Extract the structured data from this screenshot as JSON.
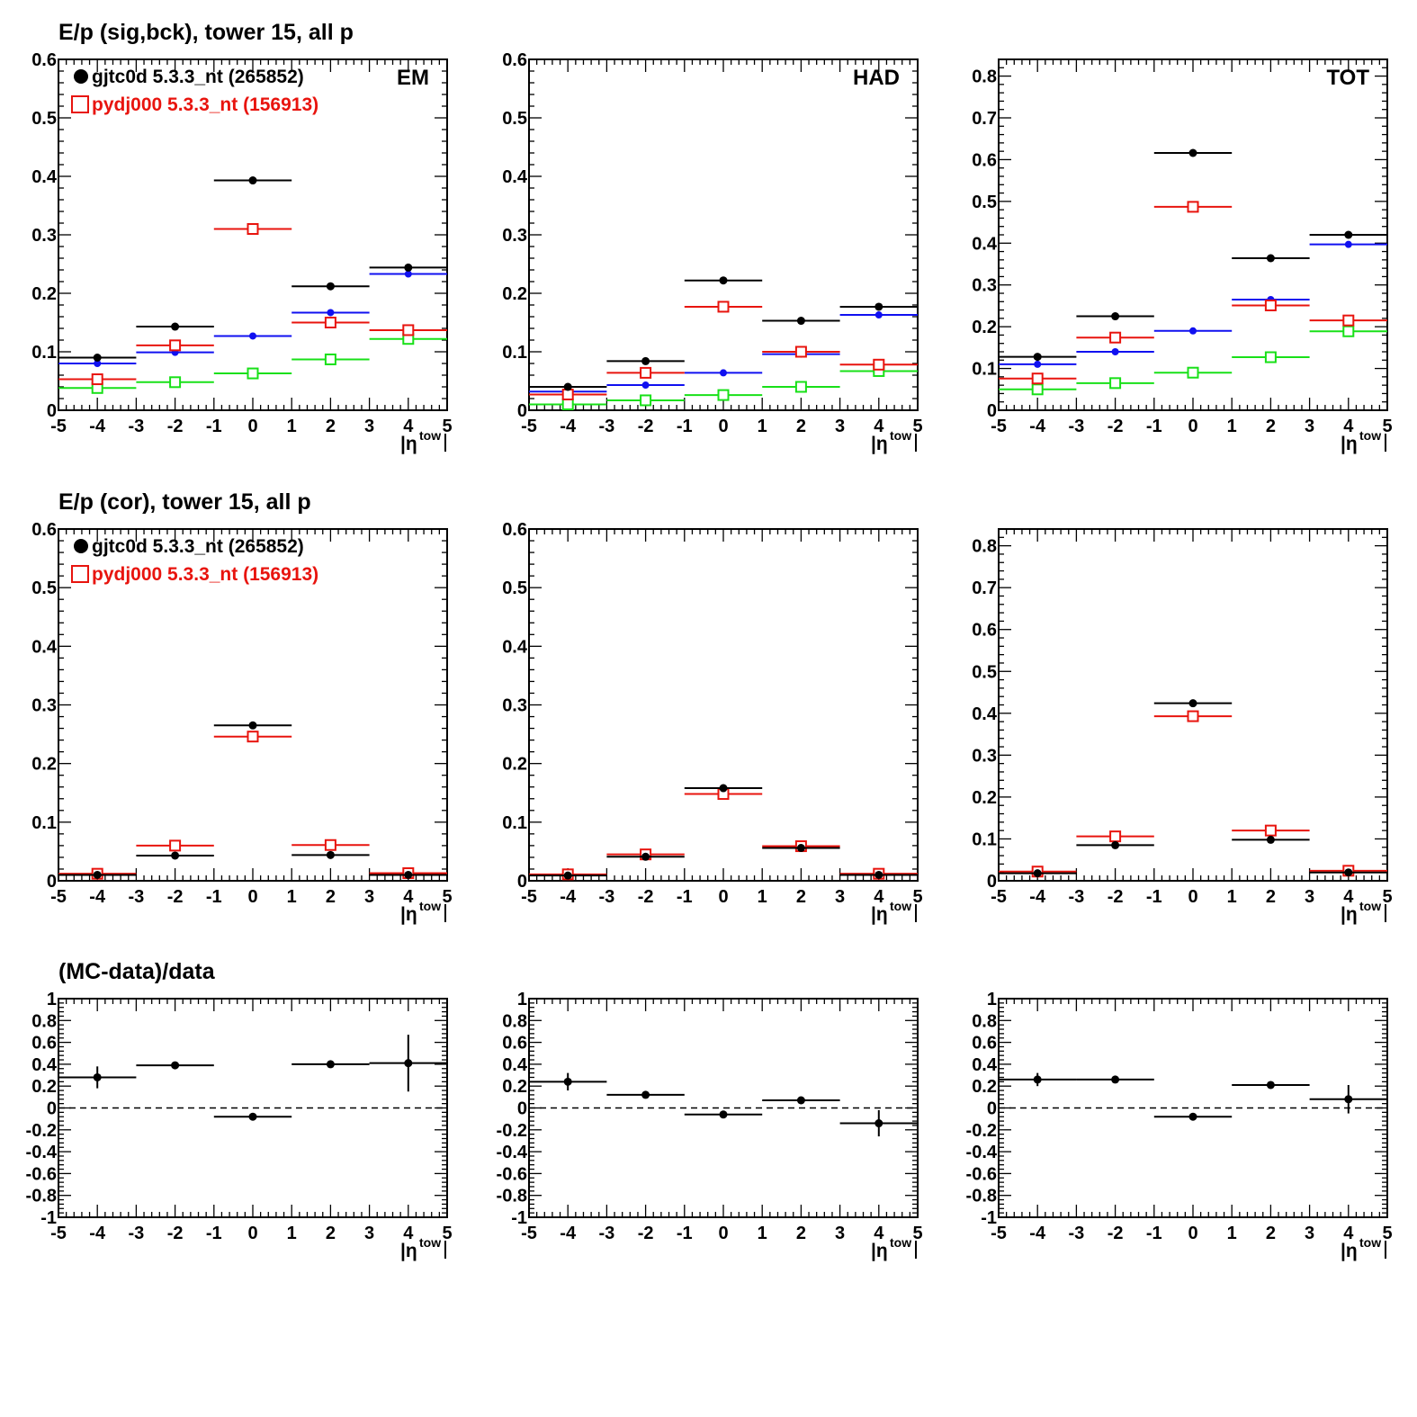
{
  "colors": {
    "data": "#000000",
    "mc": "#e8140e",
    "blue": "#1010f0",
    "green": "#18e018"
  },
  "rows": [
    {
      "title": "E/p (sig,bck), tower 15, all p"
    },
    {
      "title": "E/p (cor), tower 15, all p"
    },
    {
      "title": "(MC-data)/data"
    }
  ],
  "legend": {
    "data_label": "gjtc0d 5.3.3_nt (265852)",
    "mc_label": "pydj000 5.3.3_nt (156913)"
  },
  "xaxis_label": "|η",
  "xaxis_sup": "tow",
  "chart_data": [
    {
      "type": "scatter",
      "row": 0,
      "col": 0,
      "panel_label": "EM",
      "ylim": [
        0,
        0.6
      ],
      "yticks": [
        0,
        0.1,
        0.2,
        0.3,
        0.4,
        0.5,
        0.6
      ],
      "xlim": [
        -5,
        5
      ],
      "xticks": [
        -5,
        -4,
        -3,
        -2,
        -1,
        0,
        1,
        2,
        3,
        4,
        5
      ],
      "x": [
        -4,
        -2,
        0,
        2,
        4
      ],
      "xerr": [
        1,
        1,
        1,
        1,
        1
      ],
      "series": [
        {
          "name": "gjtc0d 5.3.3_nt (265852)",
          "color": "data",
          "marker": "dot",
          "values": [
            0.09,
            0.143,
            0.393,
            0.212,
            0.244
          ]
        },
        {
          "name": "pydj000 5.3.3_nt (156913)",
          "color": "mc",
          "marker": "square",
          "values": [
            0.053,
            0.111,
            0.31,
            0.15,
            0.137
          ]
        },
        {
          "color": "blue",
          "marker": "smalldot",
          "values": [
            0.08,
            0.099,
            0.127,
            0.167,
            0.233
          ]
        },
        {
          "color": "green",
          "marker": "square",
          "values": [
            0.038,
            0.048,
            0.063,
            0.087,
            0.122
          ]
        }
      ]
    },
    {
      "type": "scatter",
      "row": 0,
      "col": 1,
      "panel_label": "HAD",
      "ylim": [
        0,
        0.6
      ],
      "yticks": [
        0,
        0.1,
        0.2,
        0.3,
        0.4,
        0.5,
        0.6
      ],
      "xlim": [
        -5,
        5
      ],
      "xticks": [
        -5,
        -4,
        -3,
        -2,
        -1,
        0,
        1,
        2,
        3,
        4,
        5
      ],
      "x": [
        -4,
        -2,
        0,
        2,
        4
      ],
      "xerr": [
        1,
        1,
        1,
        1,
        1
      ],
      "series": [
        {
          "color": "data",
          "marker": "dot",
          "values": [
            0.04,
            0.084,
            0.222,
            0.153,
            0.177
          ]
        },
        {
          "color": "mc",
          "marker": "square",
          "values": [
            0.027,
            0.064,
            0.177,
            0.1,
            0.078
          ]
        },
        {
          "color": "blue",
          "marker": "smalldot",
          "values": [
            0.032,
            0.043,
            0.064,
            0.096,
            0.163
          ]
        },
        {
          "color": "green",
          "marker": "square",
          "values": [
            0.01,
            0.017,
            0.026,
            0.04,
            0.067
          ]
        }
      ]
    },
    {
      "type": "scatter",
      "row": 0,
      "col": 2,
      "panel_label": "TOT",
      "ylim": [
        0,
        0.84
      ],
      "yticks": [
        0,
        0.1,
        0.2,
        0.3,
        0.4,
        0.5,
        0.6,
        0.7,
        0.8
      ],
      "xlim": [
        -5,
        5
      ],
      "xticks": [
        -5,
        -4,
        -3,
        -2,
        -1,
        0,
        1,
        2,
        3,
        4,
        5
      ],
      "x": [
        -4,
        -2,
        0,
        2,
        4
      ],
      "xerr": [
        1,
        1,
        1,
        1,
        1
      ],
      "series": [
        {
          "color": "data",
          "marker": "dot",
          "values": [
            0.128,
            0.225,
            0.616,
            0.364,
            0.42
          ]
        },
        {
          "color": "mc",
          "marker": "square",
          "values": [
            0.076,
            0.174,
            0.487,
            0.251,
            0.215
          ]
        },
        {
          "color": "blue",
          "marker": "smalldot",
          "values": [
            0.11,
            0.14,
            0.19,
            0.265,
            0.397
          ]
        },
        {
          "color": "green",
          "marker": "square",
          "values": [
            0.05,
            0.065,
            0.09,
            0.127,
            0.189
          ]
        }
      ]
    },
    {
      "type": "scatter",
      "row": 1,
      "col": 0,
      "panel_label": "",
      "ylim": [
        0,
        0.6
      ],
      "yticks": [
        0,
        0.1,
        0.2,
        0.3,
        0.4,
        0.5,
        0.6
      ],
      "xlim": [
        -5,
        5
      ],
      "xticks": [
        -5,
        -4,
        -3,
        -2,
        -1,
        0,
        1,
        2,
        3,
        4,
        5
      ],
      "x": [
        -4,
        -2,
        0,
        2,
        4
      ],
      "xerr": [
        1,
        1,
        1,
        1,
        1
      ],
      "series": [
        {
          "name": "gjtc0d 5.3.3_nt (265852)",
          "color": "data",
          "marker": "dot",
          "values": [
            0.01,
            0.043,
            0.265,
            0.044,
            0.01
          ]
        },
        {
          "name": "pydj000 5.3.3_nt (156913)",
          "color": "mc",
          "marker": "square",
          "values": [
            0.012,
            0.06,
            0.246,
            0.061,
            0.013
          ]
        }
      ]
    },
    {
      "type": "scatter",
      "row": 1,
      "col": 1,
      "panel_label": "",
      "ylim": [
        0,
        0.6
      ],
      "yticks": [
        0,
        0.1,
        0.2,
        0.3,
        0.4,
        0.5,
        0.6
      ],
      "xlim": [
        -5,
        5
      ],
      "xticks": [
        -5,
        -4,
        -3,
        -2,
        -1,
        0,
        1,
        2,
        3,
        4,
        5
      ],
      "x": [
        -4,
        -2,
        0,
        2,
        4
      ],
      "xerr": [
        1,
        1,
        1,
        1,
        1
      ],
      "series": [
        {
          "color": "data",
          "marker": "dot",
          "values": [
            0.009,
            0.041,
            0.158,
            0.056,
            0.01
          ]
        },
        {
          "color": "mc",
          "marker": "square",
          "values": [
            0.011,
            0.045,
            0.148,
            0.059,
            0.012
          ]
        }
      ]
    },
    {
      "type": "scatter",
      "row": 1,
      "col": 2,
      "panel_label": "",
      "ylim": [
        0,
        0.84
      ],
      "yticks": [
        0,
        0.1,
        0.2,
        0.3,
        0.4,
        0.5,
        0.6,
        0.7,
        0.8
      ],
      "xlim": [
        -5,
        5
      ],
      "xticks": [
        -5,
        -4,
        -3,
        -2,
        -1,
        0,
        1,
        2,
        3,
        4,
        5
      ],
      "x": [
        -4,
        -2,
        0,
        2,
        4
      ],
      "xerr": [
        1,
        1,
        1,
        1,
        1
      ],
      "series": [
        {
          "color": "data",
          "marker": "dot",
          "values": [
            0.018,
            0.085,
            0.424,
            0.098,
            0.02
          ]
        },
        {
          "color": "mc",
          "marker": "square",
          "values": [
            0.022,
            0.106,
            0.393,
            0.12,
            0.024
          ]
        }
      ]
    },
    {
      "type": "scatter",
      "row": 2,
      "col": 0,
      "panel_label": "",
      "ylim": [
        -1,
        1
      ],
      "yticks": [
        -1,
        -0.8,
        -0.6,
        -0.4,
        -0.2,
        0,
        0.2,
        0.4,
        0.6,
        0.8,
        1
      ],
      "xlim": [
        -5,
        5
      ],
      "xticks": [
        -5,
        -4,
        -3,
        -2,
        -1,
        0,
        1,
        2,
        3,
        4,
        5
      ],
      "reference_line": 0,
      "x": [
        -4,
        -2,
        0,
        2,
        4
      ],
      "xerr": [
        1,
        1,
        1,
        1,
        1
      ],
      "series": [
        {
          "color": "data",
          "marker": "dot",
          "values": [
            0.28,
            0.39,
            -0.08,
            0.4,
            0.41
          ],
          "yerr": [
            0.1,
            0.01,
            0.01,
            0.015,
            0.26
          ]
        }
      ]
    },
    {
      "type": "scatter",
      "row": 2,
      "col": 1,
      "panel_label": "",
      "ylim": [
        -1,
        1
      ],
      "yticks": [
        -1,
        -0.8,
        -0.6,
        -0.4,
        -0.2,
        0,
        0.2,
        0.4,
        0.6,
        0.8,
        1
      ],
      "xlim": [
        -5,
        5
      ],
      "xticks": [
        -5,
        -4,
        -3,
        -2,
        -1,
        0,
        1,
        2,
        3,
        4,
        5
      ],
      "reference_line": 0,
      "x": [
        -4,
        -2,
        0,
        2,
        4
      ],
      "xerr": [
        1,
        1,
        1,
        1,
        1
      ],
      "series": [
        {
          "color": "data",
          "marker": "dot",
          "values": [
            0.24,
            0.12,
            -0.06,
            0.07,
            -0.14
          ],
          "yerr": [
            0.08,
            0.01,
            0.01,
            0.01,
            0.12
          ]
        }
      ]
    },
    {
      "type": "scatter",
      "row": 2,
      "col": 2,
      "panel_label": "",
      "ylim": [
        -1,
        1
      ],
      "yticks": [
        -1,
        -0.8,
        -0.6,
        -0.4,
        -0.2,
        0,
        0.2,
        0.4,
        0.6,
        0.8,
        1
      ],
      "xlim": [
        -5,
        5
      ],
      "xticks": [
        -5,
        -4,
        -3,
        -2,
        -1,
        0,
        1,
        2,
        3,
        4,
        5
      ],
      "reference_line": 0,
      "x": [
        -4,
        -2,
        0,
        2,
        4
      ],
      "xerr": [
        1,
        1,
        1,
        1,
        1
      ],
      "series": [
        {
          "color": "data",
          "marker": "dot",
          "values": [
            0.26,
            0.26,
            -0.08,
            0.21,
            0.08
          ],
          "yerr": [
            0.06,
            0.01,
            0.01,
            0.01,
            0.13
          ]
        }
      ]
    }
  ]
}
